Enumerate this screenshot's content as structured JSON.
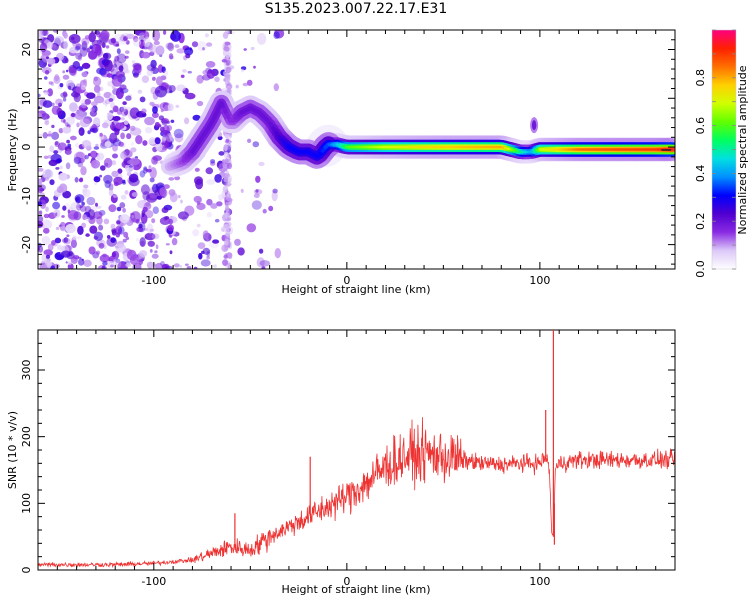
{
  "title": "S135.2023.007.22.17.E31",
  "chart_data": [
    {
      "type": "heatmap",
      "xlabel": "Height of straight line (km)",
      "ylabel": "Frequency (Hz)",
      "xlim": [
        -160,
        170
      ],
      "ylim": [
        -25,
        24
      ],
      "x_ticks": [
        -100,
        0,
        100
      ],
      "y_ticks": [
        -20,
        -10,
        0,
        10,
        20
      ],
      "colorbar": {
        "label": "Normalized spectral amplitude",
        "range": [
          0,
          1
        ],
        "ticks": [
          0.0,
          0.2,
          0.4,
          0.6,
          0.8
        ],
        "colors": [
          "#ffffff",
          "#dcc8f8",
          "#8a2be2",
          "#5000d0",
          "#0000ff",
          "#0090ff",
          "#00e0e0",
          "#00ff60",
          "#60ff00",
          "#d0ff00",
          "#ffd000",
          "#ff7000",
          "#ff2000",
          "#ff0080"
        ]
      },
      "ridge": {
        "x": [
          -92,
          -85,
          -80,
          -75,
          -70,
          -65,
          -60,
          -55,
          -50,
          -45,
          -40,
          -35,
          -30,
          -25,
          -20,
          -15,
          -10,
          -5,
          0,
          20,
          40,
          60,
          80,
          90,
          95,
          100,
          120,
          140,
          160,
          168
        ],
        "y": [
          -4,
          -3,
          -1,
          2,
          5,
          9,
          5,
          7,
          8,
          7,
          5,
          2,
          0,
          -1,
          -1,
          -2,
          0.5,
          0.5,
          0,
          0,
          0,
          0,
          0,
          -1,
          -1,
          -0.5,
          -0.5,
          -0.5,
          -0.5,
          -0.5
        ],
        "peak_amplitude": [
          0.1,
          0.15,
          0.2,
          0.2,
          0.2,
          0.2,
          0.15,
          0.2,
          0.2,
          0.2,
          0.2,
          0.25,
          0.3,
          0.3,
          0.3,
          0.3,
          0.35,
          0.45,
          0.6,
          0.7,
          0.75,
          0.78,
          0.8,
          0.5,
          0.4,
          0.7,
          0.85,
          0.88,
          0.9,
          0.95
        ]
      }
    },
    {
      "type": "line",
      "xlabel": "Height of straight line (km)",
      "ylabel": "SNR (10 * v/v)",
      "xlim": [
        -160,
        170
      ],
      "ylim": [
        0,
        360
      ],
      "x_ticks": [
        -100,
        0,
        100
      ],
      "y_ticks": [
        0,
        100,
        200,
        300
      ],
      "color": "#ee3333",
      "envelope": {
        "x": [
          -160,
          -120,
          -100,
          -80,
          -70,
          -60,
          -50,
          -40,
          -30,
          -20,
          -10,
          0,
          10,
          20,
          30,
          40,
          50,
          60,
          70,
          80,
          90,
          100,
          103,
          105,
          106,
          107,
          108,
          110,
          120,
          140,
          170
        ],
        "y": [
          8,
          8,
          10,
          15,
          25,
          35,
          30,
          50,
          65,
          80,
          95,
          110,
          130,
          155,
          170,
          175,
          170,
          165,
          160,
          158,
          160,
          160,
          170,
          150,
          60,
          50,
          150,
          160,
          165,
          165,
          165
        ]
      },
      "spikes": [
        {
          "x": -58,
          "y": 85
        },
        {
          "x": -45,
          "y": 30
        },
        {
          "x": -19,
          "y": 170
        },
        {
          "x": 103,
          "y": 240
        },
        {
          "x": 107,
          "y": 360
        },
        {
          "x": 107.5,
          "y": 38
        }
      ]
    }
  ]
}
